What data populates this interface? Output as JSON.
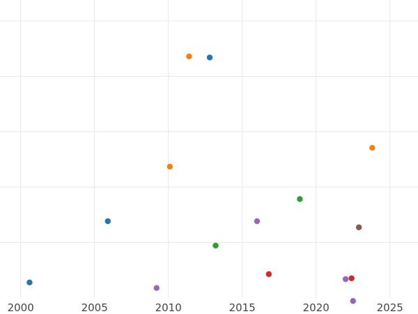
{
  "chart_data": {
    "type": "scatter",
    "title": "",
    "xlabel": "",
    "ylabel": "",
    "xlim": [
      1998.6,
      2026.9
    ],
    "ylim": [
      0,
      100
    ],
    "x_ticks": [
      2000,
      2005,
      2010,
      2015,
      2020,
      2025
    ],
    "x_tick_labels": [
      "2000",
      "2005",
      "2010",
      "2015",
      "2020",
      "2025"
    ],
    "y_gridlines": [
      20,
      40,
      60,
      80,
      100
    ],
    "grid": true,
    "legend": "none",
    "series": [
      {
        "color": "#1f77b4",
        "points": [
          {
            "x": 2000.6,
            "y": 5.6
          },
          {
            "x": 2005.9,
            "y": 27.7
          },
          {
            "x": 2012.8,
            "y": 86.8
          }
        ]
      },
      {
        "color": "#ff7f0e",
        "points": [
          {
            "x": 2010.1,
            "y": 47.4
          },
          {
            "x": 2011.4,
            "y": 87.2
          },
          {
            "x": 2023.8,
            "y": 54.2
          }
        ]
      },
      {
        "color": "#2ca02c",
        "points": [
          {
            "x": 2013.2,
            "y": 18.9
          },
          {
            "x": 2018.9,
            "y": 35.7
          }
        ]
      },
      {
        "color": "#d62728",
        "points": [
          {
            "x": 2016.8,
            "y": 8.6
          },
          {
            "x": 2022.4,
            "y": 7.1
          }
        ]
      },
      {
        "color": "#9467bd",
        "points": [
          {
            "x": 2009.2,
            "y": 3.6
          },
          {
            "x": 2016.0,
            "y": 27.7
          },
          {
            "x": 2022.0,
            "y": 6.8
          },
          {
            "x": 2022.5,
            "y": -1.1
          }
        ]
      },
      {
        "color": "#8c564b",
        "points": [
          {
            "x": 2022.9,
            "y": 25.5
          }
        ]
      }
    ]
  }
}
